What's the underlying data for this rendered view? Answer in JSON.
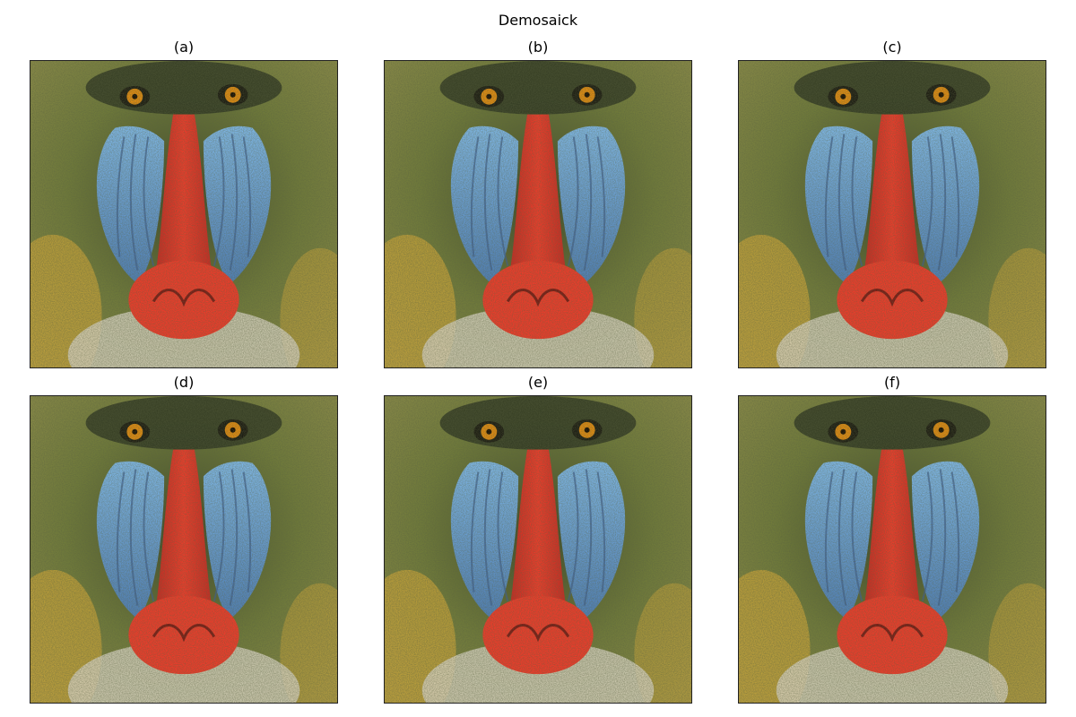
{
  "figure": {
    "title": "Demosaick",
    "panels": [
      {
        "label": "(a)",
        "variant": "a"
      },
      {
        "label": "(b)",
        "variant": "b"
      },
      {
        "label": "(c)",
        "variant": "c"
      },
      {
        "label": "(d)",
        "variant": "d"
      },
      {
        "label": "(e)",
        "variant": "e"
      },
      {
        "label": "(f)",
        "variant": "f"
      }
    ]
  },
  "colors": {
    "fur_dark": "#3f4a2a",
    "fur_green": "#6f7a3a",
    "fur_yellow": "#c9a43a",
    "cheek_blue": "#7fb8e8",
    "cheek_blue_dark": "#4f7fb8",
    "nose_red": "#ee3b2a",
    "eye_orange": "#e08a10",
    "beard_light": "#d9d4c4"
  }
}
